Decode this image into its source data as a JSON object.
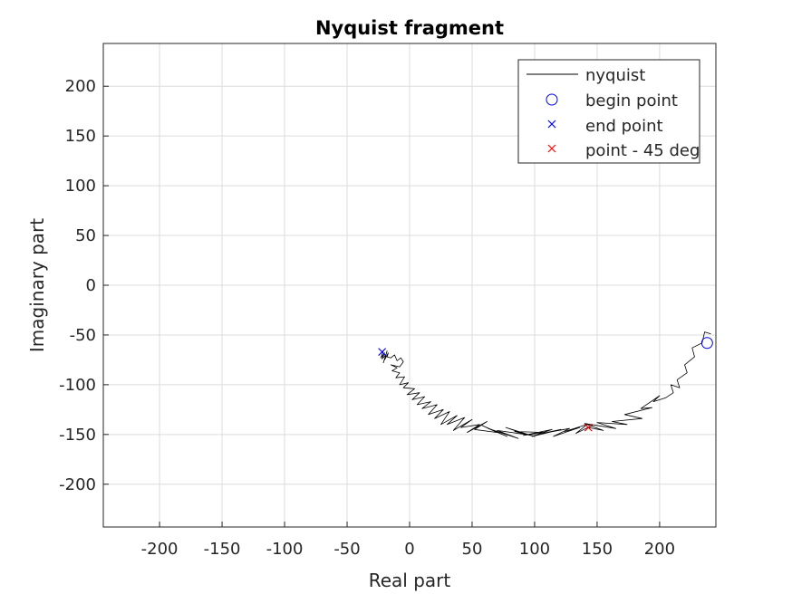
{
  "chart_data": {
    "type": "line",
    "title": "Nyquist fragment",
    "xlabel": "Real part",
    "ylabel": "Imaginary part",
    "xlim": [
      -245,
      245
    ],
    "ylim": [
      -243,
      243
    ],
    "xticks": [
      -200,
      -150,
      -100,
      -50,
      0,
      50,
      100,
      150,
      200
    ],
    "yticks": [
      -200,
      -150,
      -100,
      -50,
      0,
      50,
      100,
      150,
      200
    ],
    "grid": true,
    "legend_position": "top-right",
    "colors": {
      "nyquist": "#000000",
      "begin": "#0000ff",
      "end": "#0000ff",
      "point45": "#ff0000",
      "grid": "#dcdcdc",
      "axes": "#262626"
    },
    "series": [
      {
        "name": "nyquist",
        "marker": "none",
        "x": [
          241,
          236,
          234,
          226,
          228,
          220,
          222,
          214,
          216,
          209,
          211,
          205,
          195,
          200,
          185,
          194,
          172,
          186,
          162,
          174,
          150,
          165,
          140,
          155,
          143,
          146,
          133,
          142,
          124,
          136,
          115,
          128,
          106,
          121,
          98,
          114,
          91,
          108,
          84,
          100,
          77,
          93,
          70,
          87,
          63,
          78,
          58,
          70,
          52,
          62,
          46,
          56,
          41,
          50,
          35,
          44,
          30,
          38,
          25,
          32,
          20,
          27,
          15,
          22,
          10,
          17,
          6,
          12,
          2,
          8,
          -2,
          4,
          -5,
          -1,
          -8,
          -4,
          -11,
          -8,
          -14,
          -10,
          -15,
          -8,
          -5,
          -7,
          -10,
          -12,
          -15,
          -18,
          -17,
          -20,
          -18,
          -21,
          -19,
          -22,
          -20,
          -23,
          -21,
          -22
        ],
        "y": [
          -49,
          -47,
          -58,
          -63,
          -72,
          -80,
          -88,
          -95,
          -103,
          -100,
          -108,
          -113,
          -117,
          -111,
          -124,
          -123,
          -130,
          -134,
          -137,
          -140,
          -138,
          -144,
          -139,
          -146,
          -143,
          -141,
          -149,
          -140,
          -147,
          -143,
          -152,
          -144,
          -149,
          -145,
          -152,
          -145,
          -151,
          -148,
          -147,
          -152,
          -143,
          -150,
          -146,
          -154,
          -144,
          -152,
          -141,
          -148,
          -145,
          -137,
          -148,
          -140,
          -143,
          -135,
          -146,
          -133,
          -140,
          -131,
          -140,
          -127,
          -134,
          -125,
          -130,
          -120,
          -124,
          -117,
          -120,
          -112,
          -115,
          -108,
          -110,
          -104,
          -103,
          -98,
          -100,
          -92,
          -93,
          -88,
          -86,
          -83,
          -80,
          -82,
          -77,
          -73,
          -76,
          -70,
          -73,
          -72,
          -68,
          -75,
          -66,
          -78,
          -70,
          -74,
          -68,
          -73,
          -66,
          -67
        ]
      },
      {
        "name": "begin point",
        "marker": "circle",
        "x": [
          238
        ],
        "y": [
          -58
        ]
      },
      {
        "name": "end point",
        "marker": "x",
        "x": [
          -22
        ],
        "y": [
          -67
        ]
      },
      {
        "name": "point - 45 deg",
        "marker": "x",
        "x": [
          143
        ],
        "y": [
          -143
        ]
      }
    ]
  }
}
